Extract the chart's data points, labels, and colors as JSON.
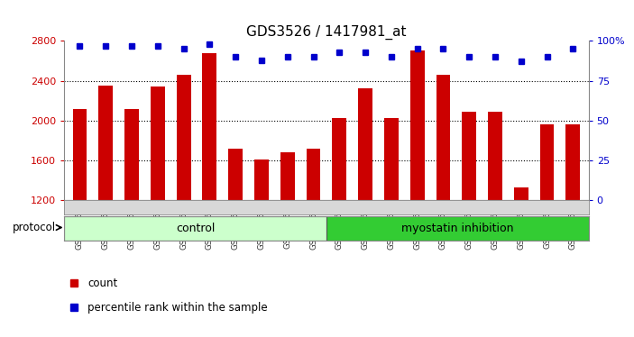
{
  "title": "GDS3526 / 1417981_at",
  "categories": [
    "GSM344631",
    "GSM344632",
    "GSM344633",
    "GSM344634",
    "GSM344635",
    "GSM344636",
    "GSM344637",
    "GSM344638",
    "GSM344639",
    "GSM344640",
    "GSM344641",
    "GSM344642",
    "GSM344643",
    "GSM344644",
    "GSM344645",
    "GSM344646",
    "GSM344647",
    "GSM344648",
    "GSM344649",
    "GSM344650"
  ],
  "bar_values": [
    2120,
    2350,
    2120,
    2340,
    2460,
    2680,
    1720,
    1610,
    1680,
    1720,
    2030,
    2320,
    2030,
    2700,
    2460,
    2090,
    2090,
    1330,
    1960,
    1960
  ],
  "dot_values": [
    97,
    97,
    97,
    97,
    95,
    98,
    90,
    88,
    90,
    90,
    93,
    93,
    90,
    95,
    95,
    90,
    90,
    87,
    90,
    95
  ],
  "bar_color": "#cc0000",
  "dot_color": "#0000cc",
  "ylim_left": [
    1200,
    2800
  ],
  "ylim_right": [
    0,
    100
  ],
  "yticks_left": [
    1200,
    1600,
    2000,
    2400,
    2800
  ],
  "yticks_right": [
    0,
    25,
    50,
    75,
    100
  ],
  "ytick_labels_right": [
    "0",
    "25",
    "50",
    "75",
    "100%"
  ],
  "grid_values": [
    1600,
    2000,
    2400
  ],
  "groups": [
    {
      "label": "control",
      "start": 0,
      "end": 10,
      "color": "#ccffcc"
    },
    {
      "label": "myostatin inhibition",
      "start": 10,
      "end": 20,
      "color": "#33cc33"
    }
  ],
  "legend_items": [
    {
      "label": "count",
      "color": "#cc0000"
    },
    {
      "label": "percentile rank within the sample",
      "color": "#0000cc"
    }
  ],
  "protocol_label": "protocol",
  "bg_color": "#d8d8d8",
  "plot_bg": "#ffffff"
}
